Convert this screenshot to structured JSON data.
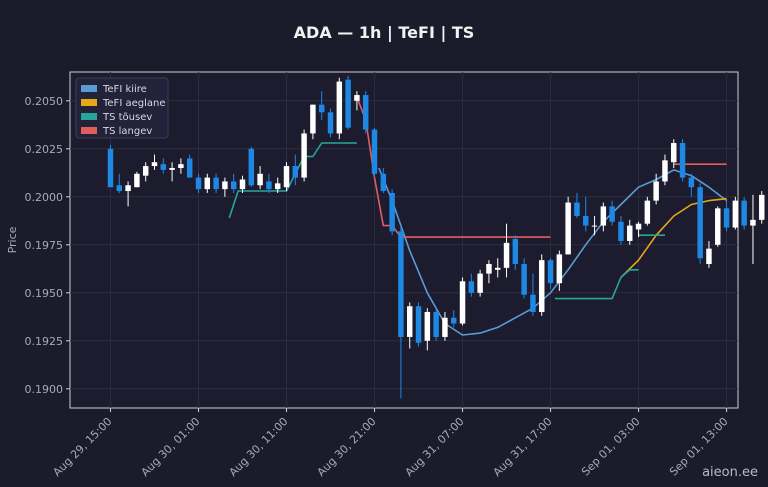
{
  "chart_data": {
    "type": "candlestick",
    "title": "ADA — 1h  |  TeFI  |  TS",
    "ylabel": "Price",
    "ylim": [
      0.189,
      0.2065
    ],
    "yticks": [
      "0.1900",
      "0.1925",
      "0.1950",
      "0.1975",
      "0.2000",
      "0.2025",
      "0.2050"
    ],
    "xticks": [
      "Aug 29, 15:00",
      "Aug 30, 01:00",
      "Aug 30, 11:00",
      "Aug 30, 21:00",
      "Aug 31, 07:00",
      "Aug 31, 17:00",
      "Sep 01, 03:00",
      "Sep 01, 13:00"
    ],
    "x_hours": [
      0,
      10,
      20,
      30,
      40,
      50,
      60,
      70
    ],
    "x_range_hours": [
      -4.6,
      71.3
    ],
    "grid": true,
    "legend_position": "top-left",
    "colors": {
      "up": "#ffffff",
      "down": "#1e88e5",
      "fast": "#5b9bd5",
      "slow": "#e6a817",
      "ts_up": "#26a69a",
      "ts_down": "#e35d5d"
    },
    "legend": [
      {
        "label": "TeFI kiire",
        "color": "#5b9bd5"
      },
      {
        "label": "TeFI aeglane",
        "color": "#e6a817"
      },
      {
        "label": "TS tõusev",
        "color": "#26a69a"
      },
      {
        "label": "TS langev",
        "color": "#e35d5d"
      }
    ],
    "candles": [
      [
        0.2025,
        0.2027,
        0.2005,
        0.2005
      ],
      [
        0.2006,
        0.2012,
        0.2002,
        0.2003
      ],
      [
        0.2003,
        0.2008,
        0.1995,
        0.2006
      ],
      [
        0.2005,
        0.2013,
        0.2005,
        0.2012
      ],
      [
        0.2011,
        0.2018,
        0.2008,
        0.2016
      ],
      [
        0.2016,
        0.2022,
        0.2014,
        0.2018
      ],
      [
        0.2017,
        0.202,
        0.2012,
        0.2014
      ],
      [
        0.2014,
        0.2018,
        0.2008,
        0.2015
      ],
      [
        0.2015,
        0.202,
        0.2012,
        0.2017
      ],
      [
        0.202,
        0.2022,
        0.201,
        0.201
      ],
      [
        0.201,
        0.2012,
        0.2002,
        0.2004
      ],
      [
        0.2004,
        0.2012,
        0.2002,
        0.201
      ],
      [
        0.201,
        0.2012,
        0.2002,
        0.2004
      ],
      [
        0.2004,
        0.201,
        0.2,
        0.2008
      ],
      [
        0.2008,
        0.2012,
        0.2002,
        0.2004
      ],
      [
        0.2004,
        0.2011,
        0.2002,
        0.2009
      ],
      [
        0.2025,
        0.2026,
        0.2005,
        0.2006
      ],
      [
        0.2006,
        0.2016,
        0.2004,
        0.2012
      ],
      [
        0.2008,
        0.2012,
        0.2002,
        0.2004
      ],
      [
        0.2004,
        0.201,
        0.2002,
        0.2007
      ],
      [
        0.2005,
        0.2018,
        0.2003,
        0.2016
      ],
      [
        0.2016,
        0.2022,
        0.2006,
        0.201
      ],
      [
        0.201,
        0.2035,
        0.2008,
        0.2033
      ],
      [
        0.2033,
        0.2048,
        0.203,
        0.2048
      ],
      [
        0.2048,
        0.2055,
        0.204,
        0.2044
      ],
      [
        0.2044,
        0.2046,
        0.2031,
        0.2033
      ],
      [
        0.2033,
        0.2062,
        0.203,
        0.206
      ],
      [
        0.2061,
        0.2063,
        0.2035,
        0.2036
      ],
      [
        0.205,
        0.2055,
        0.2045,
        0.2053
      ],
      [
        0.2053,
        0.2055,
        0.2033,
        0.2035
      ],
      [
        0.2035,
        0.2036,
        0.201,
        0.2012
      ],
      [
        0.2012,
        0.2015,
        0.2002,
        0.2003
      ],
      [
        0.2002,
        0.2004,
        0.198,
        0.1982
      ],
      [
        0.1982,
        0.1984,
        0.1895,
        0.1927
      ],
      [
        0.1927,
        0.1945,
        0.1921,
        0.1943
      ],
      [
        0.1943,
        0.1945,
        0.1922,
        0.1924
      ],
      [
        0.1925,
        0.1942,
        0.192,
        0.194
      ],
      [
        0.194,
        0.1942,
        0.1925,
        0.1927
      ],
      [
        0.1927,
        0.194,
        0.1925,
        0.1937
      ],
      [
        0.1937,
        0.1941,
        0.1932,
        0.1934
      ],
      [
        0.1934,
        0.1958,
        0.1933,
        0.1956
      ],
      [
        0.1956,
        0.196,
        0.1948,
        0.195
      ],
      [
        0.195,
        0.1962,
        0.1948,
        0.196
      ],
      [
        0.196,
        0.1967,
        0.1955,
        0.1965
      ],
      [
        0.1962,
        0.1968,
        0.1958,
        0.1963
      ],
      [
        0.1963,
        0.1986,
        0.1958,
        0.1976
      ],
      [
        0.1978,
        0.198,
        0.1962,
        0.1965
      ],
      [
        0.1965,
        0.1968,
        0.1947,
        0.1949
      ],
      [
        0.1949,
        0.196,
        0.1938,
        0.194
      ],
      [
        0.194,
        0.197,
        0.1938,
        0.1967
      ],
      [
        0.1967,
        0.1968,
        0.1952,
        0.1955
      ],
      [
        0.1955,
        0.1972,
        0.1951,
        0.197
      ],
      [
        0.197,
        0.2,
        0.197,
        0.1997
      ],
      [
        0.1997,
        0.2002,
        0.1989,
        0.199
      ],
      [
        0.199,
        0.2,
        0.1982,
        0.1985
      ],
      [
        0.1985,
        0.199,
        0.198,
        0.1985
      ],
      [
        0.1985,
        0.1997,
        0.1982,
        0.1995
      ],
      [
        0.1995,
        0.1998,
        0.1985,
        0.1987
      ],
      [
        0.1987,
        0.199,
        0.1975,
        0.1977
      ],
      [
        0.1977,
        0.1988,
        0.1975,
        0.1985
      ],
      [
        0.1983,
        0.1987,
        0.1979,
        0.1986
      ],
      [
        0.1986,
        0.2,
        0.1985,
        0.1998
      ],
      [
        0.1998,
        0.2012,
        0.1996,
        0.2008
      ],
      [
        0.2008,
        0.2022,
        0.2006,
        0.2019
      ],
      [
        0.2018,
        0.203,
        0.2015,
        0.2028
      ],
      [
        0.2028,
        0.203,
        0.2008,
        0.201
      ],
      [
        0.201,
        0.2012,
        0.2,
        0.2005
      ],
      [
        0.2005,
        0.2007,
        0.1965,
        0.1968
      ],
      [
        0.1965,
        0.1977,
        0.1963,
        0.1973
      ],
      [
        0.1975,
        0.1995,
        0.1974,
        0.1994
      ],
      [
        0.1994,
        0.1998,
        0.1982,
        0.1984
      ],
      [
        0.1984,
        0.2,
        0.1983,
        0.1998
      ],
      [
        0.1998,
        0.2,
        0.1983,
        0.1985
      ],
      [
        0.1985,
        0.2001,
        0.1965,
        0.1988
      ],
      [
        0.1988,
        0.2003,
        0.1986,
        0.2001
      ]
    ],
    "series": [
      {
        "name": "TeFI kiire",
        "x": [
          30.5,
          32,
          34,
          36,
          38,
          40,
          42,
          44,
          46,
          48,
          50,
          52,
          54,
          56,
          58,
          60,
          62,
          64,
          66,
          68,
          70
        ],
        "values": [
          0.2015,
          0.1998,
          0.1972,
          0.195,
          0.1934,
          0.1928,
          0.1929,
          0.1932,
          0.1937,
          0.1942,
          0.195,
          0.1962,
          0.1975,
          0.1987,
          0.1996,
          0.2005,
          0.2009,
          0.2014,
          0.2011,
          0.2005,
          0.1998
        ]
      },
      {
        "name": "TeFI aeglane",
        "x": [
          58,
          60,
          62,
          64,
          66,
          68,
          70
        ],
        "values": [
          0.1958,
          0.1967,
          0.198,
          0.199,
          0.1996,
          0.1998,
          0.1999
        ]
      },
      {
        "name": "TS tõusev",
        "x": [
          13.5,
          14.5,
          16,
          18,
          20,
          21,
          22,
          23,
          24,
          25,
          26,
          27,
          28
        ],
        "values": [
          0.1989,
          0.2003,
          0.2003,
          0.2003,
          0.2003,
          0.2012,
          0.2021,
          0.2021,
          0.2028,
          0.2028,
          0.2028,
          0.2028,
          0.2028
        ]
      },
      {
        "name": "TS tõusev",
        "x": [
          50.5,
          52,
          54,
          56,
          57,
          58,
          59,
          60
        ],
        "values": [
          0.1947,
          0.1947,
          0.1947,
          0.1947,
          0.1947,
          0.1958,
          0.1962,
          0.1962
        ]
      },
      {
        "name": "TS tõusev",
        "x": [
          60,
          61,
          62,
          63
        ],
        "values": [
          0.198,
          0.198,
          0.198,
          0.198
        ]
      },
      {
        "name": "TS langev",
        "x": [
          28,
          29,
          30,
          31,
          32,
          33,
          34,
          36,
          40,
          45,
          50
        ],
        "values": [
          0.2052,
          0.204,
          0.201,
          0.1985,
          0.1985,
          0.1979,
          0.1979,
          0.1979,
          0.1979,
          0.1979,
          0.1979
        ]
      },
      {
        "name": "TS langev",
        "x": [
          64,
          66,
          68,
          70
        ],
        "values": [
          0.2017,
          0.2017,
          0.2017,
          0.2017
        ]
      }
    ]
  },
  "watermark": "aieon.ee"
}
